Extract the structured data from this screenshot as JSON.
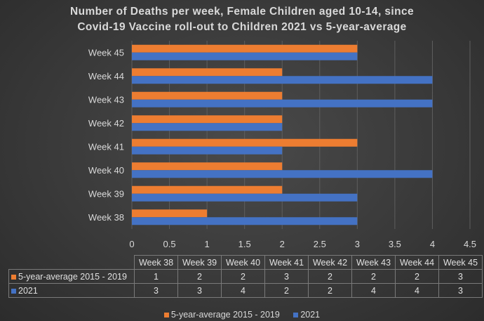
{
  "chart_data": {
    "type": "bar",
    "orientation": "horizontal",
    "title": [
      "Number of Deaths per week, Female Children aged 10-14, since",
      "Covid-19 Vaccine roll-out to Children 2021 vs 5-year-average"
    ],
    "categories": [
      "Week 38",
      "Week 39",
      "Week 40",
      "Week 41",
      "Week 42",
      "Week 43",
      "Week 44",
      "Week 45"
    ],
    "series": [
      {
        "name": "5-year-average 2015 - 2019",
        "color": "#ed7d31",
        "values": [
          1,
          2,
          2,
          3,
          2,
          2,
          2,
          3
        ]
      },
      {
        "name": "2021",
        "color": "#4472c4",
        "values": [
          3,
          3,
          4,
          2,
          2,
          4,
          4,
          3
        ]
      }
    ],
    "xlim": [
      0,
      4.5
    ],
    "ticks": [
      "0",
      "0.5",
      "1",
      "1.5",
      "2",
      "2.5",
      "3",
      "3.5",
      "4",
      "4.5"
    ],
    "grid": true,
    "legend": "bottom",
    "data_table": true
  }
}
